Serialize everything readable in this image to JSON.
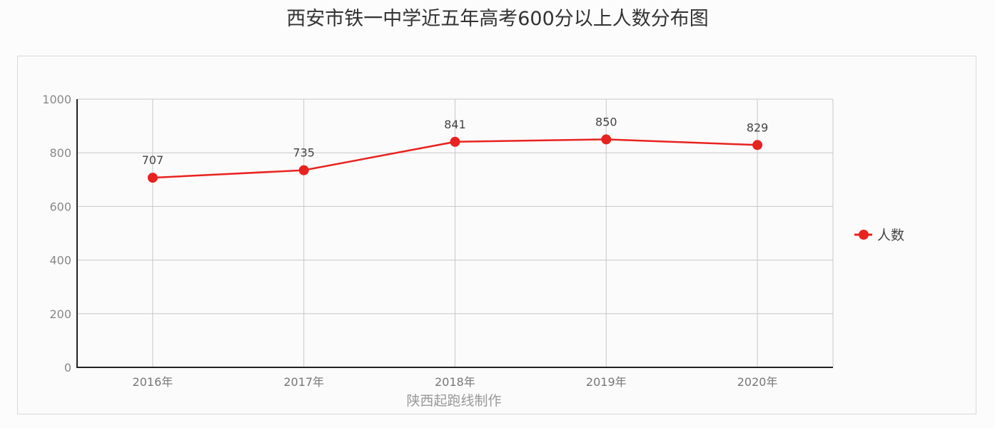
{
  "title": "西安市铁一中学近五年高考600分以上人数分布图",
  "credit": "陕西起跑线制作",
  "legend": {
    "label": "人数",
    "color": "#e8231f"
  },
  "chart_data": {
    "type": "line",
    "title": "西安市铁一中学近五年高考600分以上人数分布图",
    "xlabel": "陕西起跑线制作",
    "ylabel": "",
    "categories": [
      "2016年",
      "2017年",
      "2018年",
      "2019年",
      "2020年"
    ],
    "series": [
      {
        "name": "人数",
        "values": [
          707,
          735,
          841,
          850,
          829
        ],
        "color": "#e8231f"
      }
    ],
    "ylim": [
      0,
      1000
    ],
    "yticks": [
      0,
      200,
      400,
      600,
      800,
      1000
    ],
    "grid": true,
    "legend_position": "right",
    "data_labels": true
  }
}
